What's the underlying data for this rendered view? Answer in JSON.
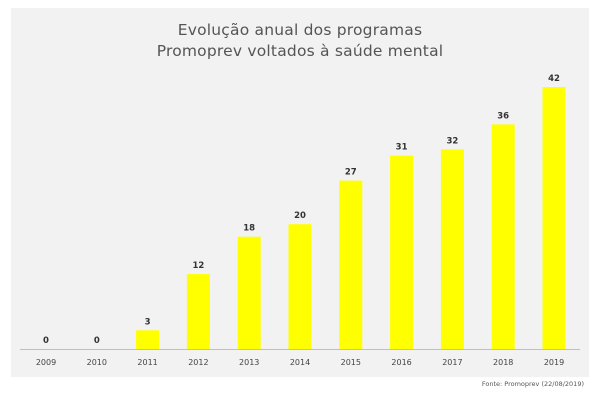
{
  "chart_data": {
    "type": "bar",
    "title_lines": [
      "Evolução anual dos programas",
      "Promoprev voltados à saúde mental"
    ],
    "categories": [
      "2009",
      "2010",
      "2011",
      "2012",
      "2013",
      "2014",
      "2015",
      "2016",
      "2017",
      "2018",
      "2019"
    ],
    "values": [
      0,
      0,
      3,
      12,
      18,
      20,
      27,
      31,
      32,
      36,
      42
    ],
    "ylim": [
      0,
      42
    ],
    "grid": false,
    "legend": "none",
    "bar_color": "#ffff00",
    "source": "Fonte: Promoprev (22/08/2019)"
  }
}
